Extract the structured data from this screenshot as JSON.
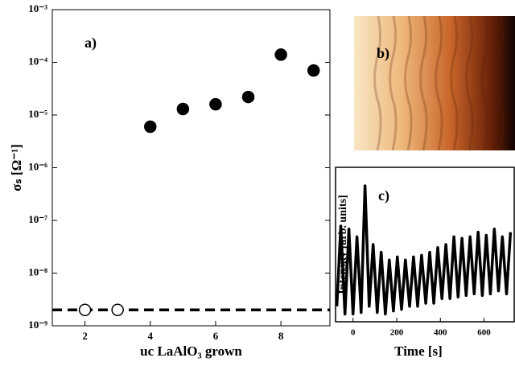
{
  "chart_data": [
    {
      "type": "scatter",
      "title": "a)",
      "x_label": "uc LaAlO₃ grown",
      "y_label": "σₛ [Ω⁻¹]",
      "log_y": true,
      "xlim": [
        1,
        9.5
      ],
      "ylim": [
        1e-09,
        0.001
      ],
      "xticks": [
        2,
        4,
        6,
        8
      ],
      "yticks": [
        {
          "value": 1e-09,
          "label": "10⁻⁹"
        },
        {
          "value": 1e-08,
          "label": "10⁻⁸"
        },
        {
          "value": 1e-07,
          "label": "10⁻⁷"
        },
        {
          "value": 1e-06,
          "label": "10⁻⁶"
        },
        {
          "value": 1e-05,
          "label": "10⁻⁵"
        },
        {
          "value": 0.0001,
          "label": "10⁻⁴"
        },
        {
          "value": 0.001,
          "label": "10⁻³"
        }
      ],
      "series": [
        {
          "marker": "filled",
          "color": "#000000",
          "x": [
            4,
            5,
            6,
            7,
            8,
            9
          ],
          "values": [
            6e-06,
            1.3e-05,
            1.6e-05,
            2.2e-05,
            0.00014,
            7e-05
          ]
        },
        {
          "marker": "open",
          "color": "#000000",
          "x": [
            2,
            3
          ],
          "values": [
            2e-09,
            2e-09
          ]
        }
      ],
      "hline": 2e-09
    },
    {
      "type": "image",
      "title": "b)"
    },
    {
      "type": "line",
      "title": "c)",
      "x_label": "Time [s]",
      "y_label": "Intensity [arb. units]",
      "xlim": [
        -80,
        738
      ],
      "ylim": [
        0,
        1
      ],
      "xticks": [
        0,
        200,
        400,
        600
      ],
      "color": "#000000",
      "x": [
        -74,
        -56,
        -37,
        -19,
        0,
        18,
        37,
        55,
        74,
        92,
        111,
        129,
        148,
        166,
        185,
        203,
        222,
        240,
        259,
        277,
        296,
        314,
        333,
        351,
        370,
        388,
        407,
        425,
        444,
        462,
        481,
        499,
        518,
        536,
        555,
        573,
        592,
        610,
        629,
        647,
        666,
        684,
        703,
        721
      ],
      "values": [
        0.1,
        0.62,
        0.05,
        0.6,
        0.05,
        0.55,
        0.06,
        0.88,
        0.1,
        0.5,
        0.06,
        0.45,
        0.05,
        0.4,
        0.07,
        0.42,
        0.08,
        0.4,
        0.1,
        0.42,
        0.1,
        0.43,
        0.12,
        0.45,
        0.12,
        0.48,
        0.15,
        0.5,
        0.15,
        0.55,
        0.16,
        0.54,
        0.17,
        0.55,
        0.18,
        0.58,
        0.17,
        0.56,
        0.18,
        0.6,
        0.2,
        0.55,
        0.18,
        0.58
      ]
    }
  ]
}
